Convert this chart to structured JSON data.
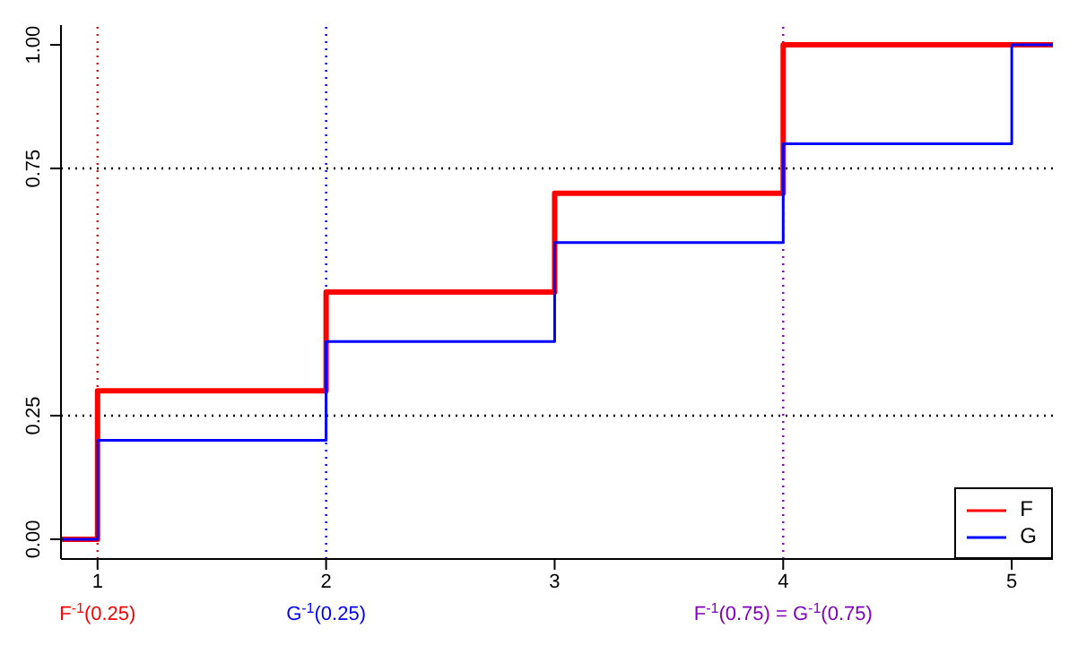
{
  "chart_data": {
    "type": "step",
    "x": [
      0.84,
      1,
      2,
      3,
      4,
      5,
      5.18
    ],
    "series": [
      {
        "name": "F",
        "color": "#ff0000",
        "values": [
          0,
          0.3,
          0.5,
          0.7,
          1.0,
          1.0,
          1.0
        ]
      },
      {
        "name": "G",
        "color": "#0000ff",
        "values": [
          0,
          0.2,
          0.4,
          0.6,
          0.8,
          1.0,
          1.0
        ]
      }
    ],
    "xlim": [
      0.84,
      5.18
    ],
    "xticks": [
      1,
      2,
      3,
      4,
      5
    ],
    "ylim": [
      -0.04,
      1.04
    ],
    "yticks": [
      {
        "value": 0,
        "label": "0.00"
      },
      {
        "value": 0.25,
        "label": "0.25"
      },
      {
        "value": 0.75,
        "label": "0.75"
      },
      {
        "value": 1,
        "label": "1.00"
      }
    ],
    "ref_lines": [
      {
        "axis": "x",
        "value": 1,
        "label": "F$^{-1}$(0.25)",
        "color": "#ff0000",
        "line_style": "dotted"
      },
      {
        "axis": "x",
        "value": 2,
        "label": "G$^{-1}$(0.25)",
        "color": "#0000ff",
        "line_style": "dotted"
      },
      {
        "axis": "x",
        "value": 4,
        "label": "F$^{-1}$(0.75) = G$^{-1}$(0.75)",
        "color": "#8000c0",
        "line_style": "dotted"
      },
      {
        "axis": "y",
        "value": 0.25,
        "color": "#000000",
        "line_style": "dotted"
      },
      {
        "axis": "y",
        "value": 0.75,
        "color": "#000000",
        "line_style": "dotted"
      }
    ],
    "legend": "bottom right",
    "marker": "none",
    "line_style": "solid",
    "grid": false
  }
}
